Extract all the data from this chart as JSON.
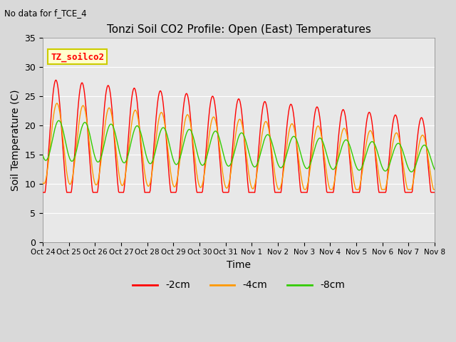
{
  "title": "Tonzi Soil CO2 Profile: Open (East) Temperatures",
  "subtitle": "No data for f_TCE_4",
  "xlabel": "Time",
  "ylabel": "Soil Temperature (C)",
  "ylim": [
    0,
    35
  ],
  "yticks": [
    0,
    5,
    10,
    15,
    20,
    25,
    30,
    35
  ],
  "legend_label": "TZ_soilco2",
  "legend_box_color": "#ffffcc",
  "legend_box_edge": "#cccc00",
  "line_colors": {
    "2cm": "#ff0000",
    "4cm": "#ff9900",
    "8cm": "#33cc00"
  },
  "background_color": "#d9d9d9",
  "plot_bg_color": "#e8e8e8",
  "x_tick_labels": [
    "Oct 24",
    "Oct 25",
    "Oct 26",
    "Oct 27",
    "Oct 28",
    "Oct 29",
    "Oct 30",
    "Oct 31",
    "Nov 1",
    "Nov 2",
    "Nov 3",
    "Nov 4",
    "Nov 5",
    "Nov 6",
    "Nov 7",
    "Nov 8"
  ]
}
